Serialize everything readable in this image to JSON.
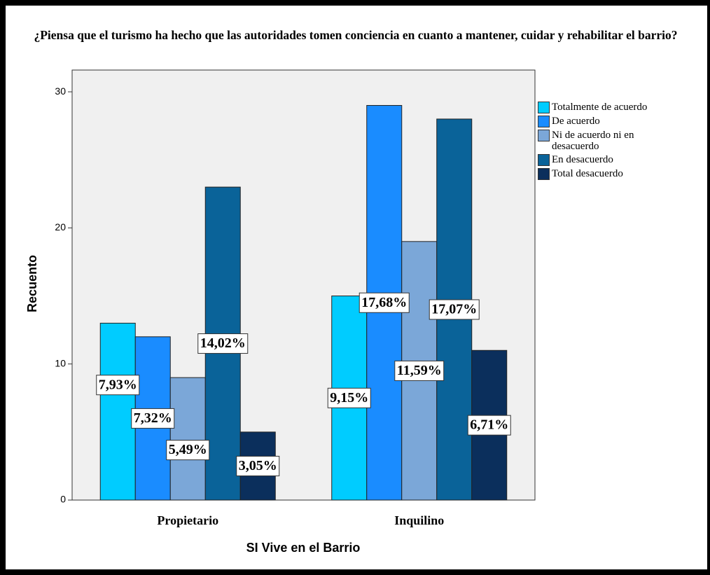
{
  "chart_data": {
    "type": "bar",
    "title": "¿Piensa que el turismo ha hecho que las autoridades tomen conciencia en cuanto a mantener, cuidar y rehabilitar  el barrio?",
    "x_label": "SI Vive en el Barrio",
    "y_label": "Recuento",
    "categories": [
      "Propietario",
      "Inquilino"
    ],
    "series": [
      {
        "name": "Totalmente de acuerdo",
        "color": "#00ccff",
        "values": [
          13,
          15
        ],
        "percents": [
          7.93,
          9.15
        ],
        "percent_labels": [
          "7,93%",
          "9,15%"
        ]
      },
      {
        "name": "De acuerdo",
        "color": "#1a8cff",
        "values": [
          12,
          29
        ],
        "percents": [
          7.32,
          17.68
        ],
        "percent_labels": [
          "7,32%",
          "17,68%"
        ]
      },
      {
        "name": "Ni de acuerdo ni en desacuerdo",
        "color": "#7ba7d8",
        "values": [
          9,
          19
        ],
        "percents": [
          5.49,
          11.59
        ],
        "percent_labels": [
          "5,49%",
          "11,59%"
        ]
      },
      {
        "name": "En desacuerdo",
        "color": "#0a6399",
        "values": [
          23,
          28
        ],
        "percents": [
          14.02,
          17.07
        ],
        "percent_labels": [
          "14,02%",
          "17,07%"
        ]
      },
      {
        "name": "Total desacuerdo",
        "color": "#0b2f5c",
        "values": [
          5,
          11
        ],
        "percents": [
          3.05,
          6.71
        ],
        "percent_labels": [
          "3,05%",
          "6,71%"
        ]
      }
    ],
    "ylim": [
      0,
      31.6
    ],
    "yticks": [
      0,
      10,
      20,
      30
    ],
    "legend": "right"
  }
}
